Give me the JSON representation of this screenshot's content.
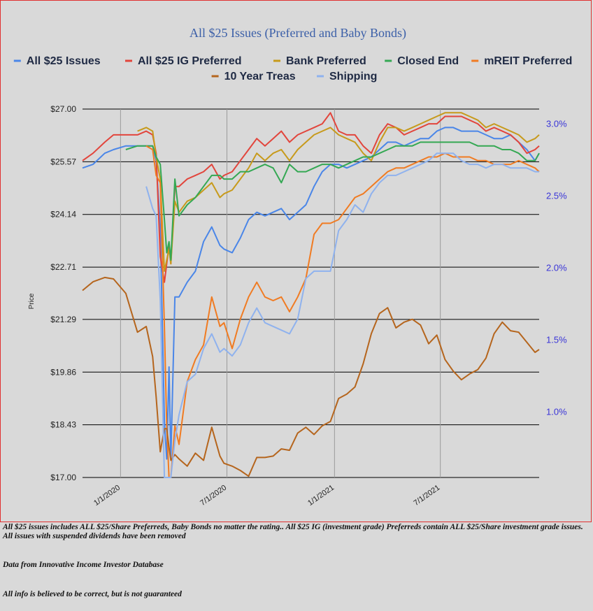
{
  "chart_data": {
    "type": "line",
    "title": "All $25 Issues (Preferred and Baby Bonds)",
    "ylabel": "Price",
    "y_left_ticks": [
      "$27.00",
      "$25.57",
      "$24.14",
      "$22.71",
      "$21.29",
      "$19.86",
      "$18.43",
      "$17.00"
    ],
    "y_left_values": [
      27.0,
      25.57,
      24.14,
      22.71,
      21.29,
      19.86,
      18.43,
      17.0
    ],
    "ylim_left": [
      17.0,
      27.0
    ],
    "y_right_ticks": [
      "3.0%",
      "2.5%",
      "2.0%",
      "1.5%",
      "1.0%"
    ],
    "y_right_values": [
      3.0,
      2.5,
      2.0,
      1.5,
      1.0
    ],
    "ylim_right": [
      0.55,
      3.1
    ],
    "x_tick_labels": [
      "1/1/2020",
      "7/1/2020",
      "1/1/2021",
      "7/1/2021"
    ],
    "x_tick_values": [
      "2020-01-01",
      "2020-07-01",
      "2021-01-01",
      "2021-07-01"
    ],
    "xlim": [
      "2019-10-28",
      "2021-12-17"
    ],
    "grid": "horizontal lines at left ticks, vertical lines at x ticks",
    "legend_position": "top",
    "series": [
      {
        "name": "All $25 Issues",
        "color": "#4a86e8",
        "axis": "left",
        "x": [
          "2019-10-28",
          "2019-11-15",
          "2019-12-05",
          "2019-12-20",
          "2020-01-10",
          "2020-01-30",
          "2020-02-14",
          "2020-02-25",
          "2020-03-02",
          "2020-03-09",
          "2020-03-16",
          "2020-03-20",
          "2020-03-24",
          "2020-03-27",
          "2020-04-03",
          "2020-04-10",
          "2020-04-24",
          "2020-05-08",
          "2020-05-22",
          "2020-06-05",
          "2020-06-19",
          "2020-06-26",
          "2020-07-10",
          "2020-07-24",
          "2020-08-07",
          "2020-08-21",
          "2020-09-04",
          "2020-09-18",
          "2020-10-02",
          "2020-10-16",
          "2020-10-30",
          "2020-11-13",
          "2020-11-27",
          "2020-12-11",
          "2020-12-25",
          "2021-01-08",
          "2021-01-22",
          "2021-02-05",
          "2021-02-19",
          "2021-03-05",
          "2021-03-19",
          "2021-04-02",
          "2021-04-16",
          "2021-04-30",
          "2021-05-14",
          "2021-05-28",
          "2021-06-11",
          "2021-06-25",
          "2021-07-09",
          "2021-07-23",
          "2021-08-06",
          "2021-08-20",
          "2021-09-03",
          "2021-09-17",
          "2021-10-01",
          "2021-10-15",
          "2021-10-29",
          "2021-11-12",
          "2021-11-26",
          "2021-12-10",
          "2021-12-17"
        ],
        "values": [
          25.4,
          25.5,
          25.8,
          25.9,
          26.0,
          26.0,
          26.0,
          26.0,
          25.6,
          23.8,
          18.5,
          17.5,
          20.0,
          17.5,
          21.9,
          21.9,
          22.3,
          22.6,
          23.4,
          23.8,
          23.3,
          23.2,
          23.1,
          23.5,
          24.0,
          24.2,
          24.1,
          24.2,
          24.3,
          24.0,
          24.2,
          24.4,
          24.9,
          25.3,
          25.5,
          25.5,
          25.4,
          25.5,
          25.6,
          25.7,
          25.9,
          26.1,
          26.1,
          26.0,
          26.1,
          26.2,
          26.2,
          26.4,
          26.5,
          26.5,
          26.4,
          26.4,
          26.4,
          26.3,
          26.2,
          26.2,
          26.3,
          26.1,
          25.9,
          25.6,
          25.8
        ]
      },
      {
        "name": "All $25 IG Preferred",
        "color": "#e2453c",
        "axis": "left",
        "x": [
          "2019-10-28",
          "2019-11-15",
          "2019-12-05",
          "2019-12-20",
          "2020-01-10",
          "2020-01-30",
          "2020-02-14",
          "2020-02-25",
          "2020-03-02",
          "2020-03-09",
          "2020-03-16",
          "2020-03-20",
          "2020-03-24",
          "2020-03-27",
          "2020-04-03",
          "2020-04-10",
          "2020-04-24",
          "2020-05-08",
          "2020-05-22",
          "2020-06-05",
          "2020-06-19",
          "2020-06-26",
          "2020-07-10",
          "2020-07-24",
          "2020-08-07",
          "2020-08-21",
          "2020-09-04",
          "2020-09-18",
          "2020-10-02",
          "2020-10-16",
          "2020-10-30",
          "2020-11-13",
          "2020-11-27",
          "2020-12-11",
          "2020-12-25",
          "2021-01-08",
          "2021-01-22",
          "2021-02-05",
          "2021-02-19",
          "2021-03-05",
          "2021-03-19",
          "2021-04-02",
          "2021-04-16",
          "2021-04-30",
          "2021-05-14",
          "2021-05-28",
          "2021-06-11",
          "2021-06-25",
          "2021-07-09",
          "2021-07-23",
          "2021-08-06",
          "2021-08-20",
          "2021-09-03",
          "2021-09-17",
          "2021-10-01",
          "2021-10-15",
          "2021-10-29",
          "2021-11-12",
          "2021-11-26",
          "2021-12-10",
          "2021-12-17"
        ],
        "values": [
          25.6,
          25.8,
          26.1,
          26.3,
          26.3,
          26.3,
          26.4,
          26.3,
          25.8,
          23.0,
          22.3,
          22.8,
          23.3,
          22.8,
          24.9,
          24.9,
          25.1,
          25.2,
          25.3,
          25.5,
          25.1,
          25.2,
          25.3,
          25.6,
          25.9,
          26.2,
          26.0,
          26.2,
          26.4,
          26.1,
          26.3,
          26.4,
          26.5,
          26.6,
          26.9,
          26.4,
          26.3,
          26.3,
          26.0,
          25.8,
          26.3,
          26.6,
          26.5,
          26.3,
          26.4,
          26.5,
          26.6,
          26.6,
          26.8,
          26.8,
          26.8,
          26.7,
          26.6,
          26.4,
          26.5,
          26.4,
          26.3,
          26.1,
          25.8,
          25.9,
          26.0
        ]
      },
      {
        "name": "Bank Preferred",
        "color": "#c79a1b",
        "axis": "left",
        "x": [
          "2019-10-28",
          "2019-11-15",
          "2019-12-05",
          "2019-12-20",
          "2020-01-10",
          "2020-01-30",
          "2020-02-14",
          "2020-02-25",
          "2020-03-02",
          "2020-03-09",
          "2020-03-16",
          "2020-03-20",
          "2020-03-24",
          "2020-03-27",
          "2020-04-03",
          "2020-04-10",
          "2020-04-24",
          "2020-05-08",
          "2020-05-22",
          "2020-06-05",
          "2020-06-19",
          "2020-06-26",
          "2020-07-10",
          "2020-07-24",
          "2020-08-07",
          "2020-08-21",
          "2020-09-04",
          "2020-09-18",
          "2020-10-02",
          "2020-10-16",
          "2020-10-30",
          "2020-11-13",
          "2020-11-27",
          "2020-12-11",
          "2020-12-25",
          "2021-01-08",
          "2021-01-22",
          "2021-02-05",
          "2021-02-19",
          "2021-03-05",
          "2021-03-19",
          "2021-04-02",
          "2021-04-16",
          "2021-04-30",
          "2021-05-14",
          "2021-05-28",
          "2021-06-11",
          "2021-06-25",
          "2021-07-09",
          "2021-07-23",
          "2021-08-06",
          "2021-08-20",
          "2021-09-03",
          "2021-09-17",
          "2021-10-01",
          "2021-10-15",
          "2021-10-29",
          "2021-11-12",
          "2021-11-26",
          "2021-12-10",
          "2021-12-17"
        ],
        "values": [
          null,
          null,
          null,
          null,
          null,
          26.4,
          26.5,
          26.4,
          25.7,
          25.1,
          22.6,
          22.9,
          23.2,
          22.8,
          24.5,
          24.2,
          24.5,
          24.6,
          24.8,
          25.0,
          24.6,
          24.7,
          24.8,
          25.1,
          25.4,
          25.8,
          25.6,
          25.8,
          25.9,
          25.6,
          25.9,
          26.1,
          26.3,
          26.4,
          26.5,
          26.3,
          26.2,
          26.1,
          25.8,
          25.6,
          26.1,
          26.5,
          26.5,
          26.4,
          26.5,
          26.6,
          26.7,
          26.8,
          26.9,
          26.9,
          26.9,
          26.8,
          26.7,
          26.5,
          26.6,
          26.5,
          26.4,
          26.3,
          26.1,
          26.2,
          26.3
        ]
      },
      {
        "name": "Closed End",
        "color": "#34a853",
        "axis": "left",
        "x": [
          "2019-10-28",
          "2019-11-15",
          "2019-12-05",
          "2019-12-20",
          "2020-01-10",
          "2020-01-30",
          "2020-02-14",
          "2020-02-25",
          "2020-03-02",
          "2020-03-09",
          "2020-03-16",
          "2020-03-20",
          "2020-03-24",
          "2020-03-27",
          "2020-04-03",
          "2020-04-10",
          "2020-04-24",
          "2020-05-08",
          "2020-05-22",
          "2020-06-05",
          "2020-06-19",
          "2020-06-26",
          "2020-07-10",
          "2020-07-24",
          "2020-08-07",
          "2020-08-21",
          "2020-09-04",
          "2020-09-18",
          "2020-10-02",
          "2020-10-16",
          "2020-10-30",
          "2020-11-13",
          "2020-11-27",
          "2020-12-11",
          "2020-12-25",
          "2021-01-08",
          "2021-01-22",
          "2021-02-05",
          "2021-02-19",
          "2021-03-05",
          "2021-03-19",
          "2021-04-02",
          "2021-04-16",
          "2021-04-30",
          "2021-05-14",
          "2021-05-28",
          "2021-06-11",
          "2021-06-25",
          "2021-07-09",
          "2021-07-23",
          "2021-08-06",
          "2021-08-20",
          "2021-09-03",
          "2021-09-17",
          "2021-10-01",
          "2021-10-15",
          "2021-10-29",
          "2021-11-12",
          "2021-11-26",
          "2021-12-10",
          "2021-12-17"
        ],
        "values": [
          null,
          null,
          null,
          null,
          25.9,
          26.0,
          26.0,
          26.0,
          25.7,
          25.5,
          24.0,
          23.1,
          23.4,
          22.9,
          25.1,
          24.1,
          24.4,
          24.6,
          24.9,
          25.2,
          25.2,
          25.1,
          25.1,
          25.3,
          25.3,
          25.4,
          25.5,
          25.4,
          25.0,
          25.5,
          25.3,
          25.3,
          25.4,
          25.5,
          25.5,
          25.4,
          25.5,
          25.6,
          25.7,
          25.7,
          25.8,
          25.9,
          26.0,
          26.0,
          26.0,
          26.1,
          26.1,
          26.1,
          26.1,
          26.1,
          26.1,
          26.1,
          26.0,
          26.0,
          26.0,
          25.9,
          25.9,
          25.8,
          25.6,
          25.6,
          25.8
        ]
      },
      {
        "name": "mREIT Preferred",
        "color": "#f07b22",
        "axis": "left",
        "x": [
          "2019-10-28",
          "2019-11-15",
          "2019-12-05",
          "2019-12-20",
          "2020-01-10",
          "2020-01-30",
          "2020-02-14",
          "2020-02-25",
          "2020-03-02",
          "2020-03-09",
          "2020-03-16",
          "2020-03-20",
          "2020-03-24",
          "2020-03-27",
          "2020-04-03",
          "2020-04-10",
          "2020-04-24",
          "2020-05-08",
          "2020-05-22",
          "2020-06-05",
          "2020-06-19",
          "2020-06-26",
          "2020-07-10",
          "2020-07-24",
          "2020-08-07",
          "2020-08-21",
          "2020-09-04",
          "2020-09-18",
          "2020-10-02",
          "2020-10-16",
          "2020-10-30",
          "2020-11-13",
          "2020-11-27",
          "2020-12-11",
          "2020-12-25",
          "2021-01-08",
          "2021-01-22",
          "2021-02-05",
          "2021-02-19",
          "2021-03-05",
          "2021-03-19",
          "2021-04-02",
          "2021-04-16",
          "2021-04-30",
          "2021-05-14",
          "2021-05-28",
          "2021-06-11",
          "2021-06-25",
          "2021-07-09",
          "2021-07-23",
          "2021-08-06",
          "2021-08-20",
          "2021-09-03",
          "2021-09-17",
          "2021-10-01",
          "2021-10-15",
          "2021-10-29",
          "2021-11-12",
          "2021-11-26",
          "2021-12-10",
          "2021-12-17"
        ],
        "values": [
          null,
          null,
          null,
          null,
          null,
          null,
          26.0,
          25.9,
          25.2,
          25.0,
          21.1,
          18.4,
          17.0,
          17.0,
          18.4,
          17.9,
          19.6,
          20.2,
          20.6,
          21.9,
          21.1,
          21.2,
          20.5,
          21.3,
          21.9,
          22.3,
          21.9,
          21.8,
          21.9,
          21.5,
          21.9,
          22.4,
          23.6,
          23.9,
          23.9,
          24.0,
          24.3,
          24.6,
          24.7,
          24.9,
          25.1,
          25.3,
          25.4,
          25.4,
          25.5,
          25.6,
          25.7,
          25.7,
          25.8,
          25.7,
          25.7,
          25.7,
          25.6,
          25.6,
          25.5,
          25.5,
          25.5,
          25.6,
          25.5,
          25.4,
          25.3
        ]
      },
      {
        "name": "10 Year Treas",
        "color": "#b5651d",
        "axis": "right",
        "x": [
          "2019-10-28",
          "2019-11-15",
          "2019-12-05",
          "2019-12-20",
          "2020-01-10",
          "2020-01-30",
          "2020-02-14",
          "2020-02-25",
          "2020-03-02",
          "2020-03-09",
          "2020-03-16",
          "2020-03-20",
          "2020-03-24",
          "2020-03-27",
          "2020-04-03",
          "2020-04-10",
          "2020-04-24",
          "2020-05-08",
          "2020-05-22",
          "2020-06-05",
          "2020-06-19",
          "2020-06-26",
          "2020-07-10",
          "2020-07-24",
          "2020-08-07",
          "2020-08-21",
          "2020-09-04",
          "2020-09-18",
          "2020-10-02",
          "2020-10-16",
          "2020-10-30",
          "2020-11-13",
          "2020-11-27",
          "2020-12-11",
          "2020-12-25",
          "2021-01-08",
          "2021-01-22",
          "2021-02-05",
          "2021-02-19",
          "2021-03-05",
          "2021-03-19",
          "2021-04-02",
          "2021-04-16",
          "2021-04-30",
          "2021-05-14",
          "2021-05-28",
          "2021-06-11",
          "2021-06-25",
          "2021-07-09",
          "2021-07-23",
          "2021-08-06",
          "2021-08-20",
          "2021-09-03",
          "2021-09-17",
          "2021-10-01",
          "2021-10-15",
          "2021-10-29",
          "2021-11-12",
          "2021-11-26",
          "2021-12-10",
          "2021-12-17"
        ],
        "values": [
          1.84,
          1.9,
          1.93,
          1.92,
          1.82,
          1.55,
          1.59,
          1.38,
          1.1,
          0.72,
          0.88,
          0.88,
          0.75,
          0.66,
          0.7,
          0.67,
          0.62,
          0.71,
          0.66,
          0.89,
          0.69,
          0.64,
          0.62,
          0.59,
          0.55,
          0.68,
          0.68,
          0.69,
          0.74,
          0.73,
          0.85,
          0.89,
          0.84,
          0.9,
          0.93,
          1.09,
          1.12,
          1.17,
          1.33,
          1.54,
          1.68,
          1.72,
          1.58,
          1.62,
          1.64,
          1.6,
          1.47,
          1.53,
          1.36,
          1.28,
          1.22,
          1.26,
          1.29,
          1.37,
          1.54,
          1.62,
          1.56,
          1.55,
          1.48,
          1.41,
          1.43
        ]
      },
      {
        "name": "Shipping",
        "color": "#8fb2ee",
        "axis": "left",
        "x": [
          "2019-10-28",
          "2019-11-15",
          "2019-12-05",
          "2019-12-20",
          "2020-01-10",
          "2020-01-30",
          "2020-02-14",
          "2020-02-25",
          "2020-03-02",
          "2020-03-09",
          "2020-03-16",
          "2020-03-20",
          "2020-03-24",
          "2020-03-27",
          "2020-04-03",
          "2020-04-10",
          "2020-04-24",
          "2020-05-08",
          "2020-05-22",
          "2020-06-05",
          "2020-06-19",
          "2020-06-26",
          "2020-07-10",
          "2020-07-24",
          "2020-08-07",
          "2020-08-21",
          "2020-09-04",
          "2020-09-18",
          "2020-10-02",
          "2020-10-16",
          "2020-10-30",
          "2020-11-13",
          "2020-11-27",
          "2020-12-11",
          "2020-12-25",
          "2021-01-08",
          "2021-01-22",
          "2021-02-05",
          "2021-02-19",
          "2021-03-05",
          "2021-03-19",
          "2021-04-02",
          "2021-04-16",
          "2021-04-30",
          "2021-05-14",
          "2021-05-28",
          "2021-06-11",
          "2021-06-25",
          "2021-07-09",
          "2021-07-23",
          "2021-08-06",
          "2021-08-20",
          "2021-09-03",
          "2021-09-17",
          "2021-10-01",
          "2021-10-15",
          "2021-10-29",
          "2021-11-12",
          "2021-11-26",
          "2021-12-10",
          "2021-12-17"
        ],
        "values": [
          null,
          null,
          null,
          null,
          null,
          null,
          24.9,
          24.3,
          24.1,
          21.8,
          17.0,
          17.0,
          17.0,
          17.0,
          18.0,
          18.7,
          19.6,
          19.8,
          20.5,
          20.9,
          20.4,
          20.5,
          20.3,
          20.6,
          21.2,
          21.6,
          21.2,
          21.1,
          21.0,
          20.9,
          21.3,
          22.4,
          22.6,
          22.6,
          22.6,
          23.7,
          24.0,
          24.4,
          24.2,
          24.7,
          25.0,
          25.2,
          25.2,
          25.3,
          25.4,
          25.5,
          25.6,
          25.8,
          25.8,
          25.8,
          25.6,
          25.5,
          25.5,
          25.4,
          25.5,
          25.5,
          25.4,
          25.4,
          25.4,
          25.3,
          25.3
        ]
      }
    ]
  },
  "notes": {
    "line1": "All $25 issues includes ALL $25/Share Preferreds, Baby Bonds no matter the rating..  All $25 IG (investment grade) Preferreds contain ALL $25/Share investment grade issues.  All issues with suspended dividends have been removed",
    "source": "Data from Innovative Income Investor Database",
    "disclaimer": "All info is believed to be correct, but is not guaranteed"
  }
}
